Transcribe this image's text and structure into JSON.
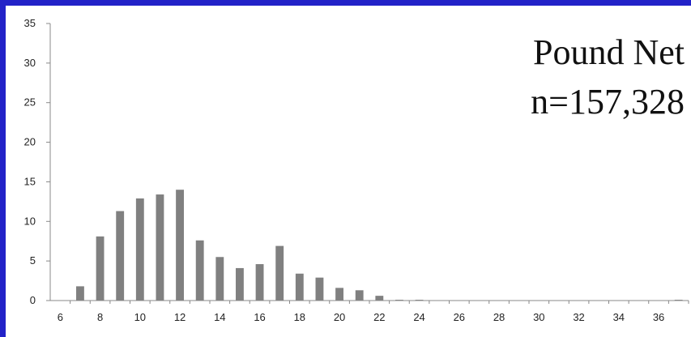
{
  "chart_data": {
    "type": "bar",
    "title_lines": [
      "Pound Net",
      "n=157,328"
    ],
    "xlabel": "",
    "ylabel": "",
    "x": [
      6,
      7,
      8,
      9,
      10,
      11,
      12,
      13,
      14,
      15,
      16,
      17,
      18,
      19,
      20,
      21,
      22,
      23,
      24,
      25,
      26,
      27,
      28,
      29,
      30,
      31,
      32,
      33,
      34,
      35,
      36,
      37
    ],
    "values": [
      0,
      1.8,
      8.1,
      11.3,
      12.9,
      13.4,
      14.0,
      7.6,
      5.5,
      4.1,
      4.6,
      6.9,
      3.4,
      2.9,
      1.6,
      1.3,
      0.6,
      0.1,
      0.1,
      0,
      0,
      0,
      0,
      0,
      0,
      0,
      0,
      0,
      0,
      0,
      0,
      0.1
    ],
    "x_ticks": [
      6,
      8,
      10,
      12,
      14,
      16,
      18,
      20,
      22,
      24,
      26,
      28,
      30,
      32,
      34,
      36
    ],
    "y_ticks": [
      0,
      5,
      10,
      15,
      20,
      25,
      30,
      35
    ],
    "ylim": [
      0,
      35
    ],
    "xlim": [
      5.5,
      37.5
    ],
    "bar_color": "#808080",
    "grid": false
  }
}
